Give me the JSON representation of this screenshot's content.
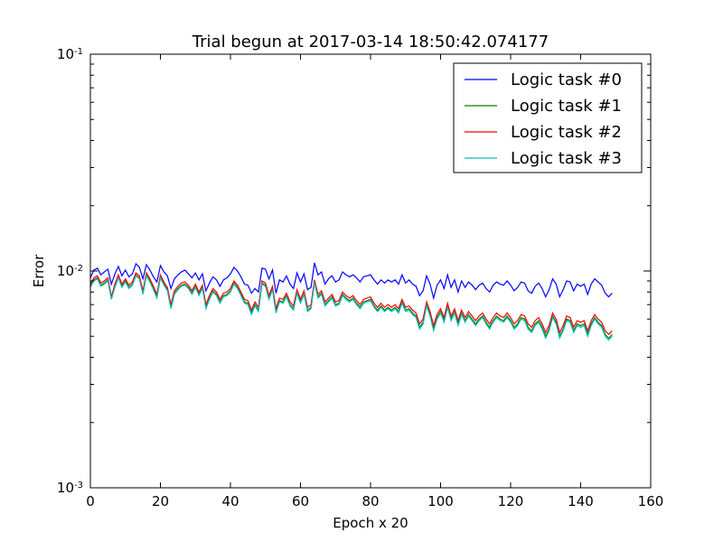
{
  "chart_data": {
    "type": "line",
    "title": "Trial begun at 2017-03-14 18:50:42.074177",
    "xlabel": "Epoch x 20",
    "ylabel": "Error",
    "xlim": [
      0,
      160
    ],
    "ylim": [
      0.001,
      0.1
    ],
    "yscale": "log",
    "xticks": [
      0,
      20,
      40,
      60,
      80,
      100,
      120,
      140,
      160
    ],
    "xtick_labels": [
      "0",
      "20",
      "40",
      "60",
      "80",
      "100",
      "120",
      "140",
      "160"
    ],
    "yticks": [
      0.001,
      0.01,
      0.1
    ],
    "ytick_labels": [
      {
        "base": "10",
        "exp": "-3"
      },
      {
        "base": "10",
        "exp": "-2"
      },
      {
        "base": "10",
        "exp": "-1"
      }
    ],
    "legend_position": "top-right",
    "series": [
      {
        "name": "Logic task #0",
        "color": "#0000ff",
        "values": [
          0.0093,
          0.0101,
          0.0103,
          0.0096,
          0.0099,
          0.0102,
          0.0087,
          0.0097,
          0.0105,
          0.0095,
          0.0101,
          0.0094,
          0.0097,
          0.0108,
          0.0104,
          0.0092,
          0.0107,
          0.0101,
          0.0094,
          0.0089,
          0.0106,
          0.0099,
          0.0095,
          0.0083,
          0.0092,
          0.0096,
          0.0099,
          0.0101,
          0.0097,
          0.0093,
          0.0098,
          0.0091,
          0.0097,
          0.0081,
          0.0088,
          0.0094,
          0.0091,
          0.0085,
          0.0091,
          0.0093,
          0.0097,
          0.0104,
          0.01,
          0.0094,
          0.0087,
          0.0086,
          0.0079,
          0.0083,
          0.008,
          0.0103,
          0.0102,
          0.0092,
          0.0101,
          0.0079,
          0.0091,
          0.0089,
          0.0095,
          0.0087,
          0.0083,
          0.0098,
          0.0089,
          0.0097,
          0.0082,
          0.0084,
          0.0109,
          0.0096,
          0.0099,
          0.0087,
          0.0092,
          0.0095,
          0.0089,
          0.0091,
          0.0099,
          0.0096,
          0.0094,
          0.0096,
          0.0093,
          0.0089,
          0.0094,
          0.0095,
          0.0096,
          0.0091,
          0.0087,
          0.0091,
          0.0088,
          0.0091,
          0.0089,
          0.0091,
          0.0087,
          0.0096,
          0.0088,
          0.0091,
          0.0087,
          0.0085,
          0.0077,
          0.0081,
          0.0095,
          0.0087,
          0.0075,
          0.0086,
          0.0091,
          0.0083,
          0.0096,
          0.0084,
          0.0091,
          0.008,
          0.009,
          0.0084,
          0.0089,
          0.0086,
          0.0082,
          0.0086,
          0.0088,
          0.0083,
          0.008,
          0.0086,
          0.0089,
          0.0087,
          0.0086,
          0.009,
          0.0086,
          0.0081,
          0.0084,
          0.0089,
          0.0088,
          0.0081,
          0.0079,
          0.0085,
          0.0088,
          0.0083,
          0.0076,
          0.0082,
          0.0092,
          0.0087,
          0.0076,
          0.0082,
          0.009,
          0.0089,
          0.0081,
          0.0087,
          0.0085,
          0.0087,
          0.0078,
          0.0087,
          0.0092,
          0.0089,
          0.0086,
          0.0079,
          0.0076,
          0.0079
        ]
      },
      {
        "name": "Logic task #1",
        "color": "#008000",
        "values": [
          0.0085,
          0.0091,
          0.0093,
          0.0086,
          0.0088,
          0.0091,
          0.0075,
          0.0085,
          0.0094,
          0.0085,
          0.009,
          0.0084,
          0.0087,
          0.0096,
          0.0093,
          0.0079,
          0.0096,
          0.009,
          0.0083,
          0.0076,
          0.0094,
          0.0087,
          0.0082,
          0.0068,
          0.0079,
          0.0083,
          0.0086,
          0.0087,
          0.0084,
          0.0079,
          0.0085,
          0.0078,
          0.0084,
          0.0068,
          0.0075,
          0.0081,
          0.0078,
          0.0072,
          0.0077,
          0.0078,
          0.0081,
          0.0088,
          0.0084,
          0.0078,
          0.0072,
          0.0071,
          0.0064,
          0.007,
          0.0066,
          0.0088,
          0.0086,
          0.0075,
          0.0083,
          0.0065,
          0.0073,
          0.0072,
          0.0077,
          0.007,
          0.0067,
          0.008,
          0.0072,
          0.0079,
          0.0066,
          0.0068,
          0.0089,
          0.0076,
          0.0079,
          0.007,
          0.0073,
          0.0076,
          0.007,
          0.0071,
          0.0078,
          0.0075,
          0.0073,
          0.0075,
          0.0071,
          0.0068,
          0.0072,
          0.0073,
          0.0074,
          0.0069,
          0.0066,
          0.0069,
          0.0066,
          0.0068,
          0.0066,
          0.0068,
          0.0065,
          0.0072,
          0.0066,
          0.0067,
          0.0064,
          0.0062,
          0.0055,
          0.0058,
          0.007,
          0.0063,
          0.0054,
          0.0061,
          0.0065,
          0.0059,
          0.0069,
          0.006,
          0.0065,
          0.0057,
          0.0064,
          0.0059,
          0.0063,
          0.006,
          0.0057,
          0.006,
          0.0062,
          0.0058,
          0.0055,
          0.0059,
          0.0062,
          0.006,
          0.0059,
          0.0062,
          0.0059,
          0.0055,
          0.0057,
          0.0061,
          0.006,
          0.0055,
          0.0053,
          0.0057,
          0.0059,
          0.0055,
          0.005,
          0.0054,
          0.0062,
          0.0058,
          0.005,
          0.0054,
          0.006,
          0.0059,
          0.0053,
          0.0057,
          0.0056,
          0.0057,
          0.0051,
          0.0057,
          0.0061,
          0.0058,
          0.0056,
          0.0051,
          0.0049,
          0.0051
        ]
      },
      {
        "name": "Logic task #2",
        "color": "#ff0000",
        "values": [
          0.0087,
          0.0093,
          0.0095,
          0.0088,
          0.009,
          0.0093,
          0.0076,
          0.0087,
          0.0096,
          0.0087,
          0.0092,
          0.0086,
          0.0089,
          0.0098,
          0.0095,
          0.0081,
          0.0098,
          0.0092,
          0.0085,
          0.0078,
          0.0096,
          0.0089,
          0.0084,
          0.007,
          0.0081,
          0.0085,
          0.0088,
          0.0089,
          0.0086,
          0.0081,
          0.0087,
          0.008,
          0.0086,
          0.007,
          0.0077,
          0.0083,
          0.008,
          0.0074,
          0.0079,
          0.008,
          0.0083,
          0.009,
          0.0086,
          0.008,
          0.0074,
          0.0073,
          0.0066,
          0.0072,
          0.0068,
          0.009,
          0.0088,
          0.0077,
          0.0085,
          0.0067,
          0.0075,
          0.0074,
          0.0079,
          0.0072,
          0.0069,
          0.0082,
          0.0074,
          0.0081,
          0.0068,
          0.007,
          0.0091,
          0.0078,
          0.0081,
          0.0072,
          0.0075,
          0.0078,
          0.0072,
          0.0073,
          0.008,
          0.0077,
          0.0075,
          0.0077,
          0.0073,
          0.007,
          0.0074,
          0.0075,
          0.0076,
          0.0071,
          0.0068,
          0.0071,
          0.0068,
          0.007,
          0.0068,
          0.007,
          0.0067,
          0.0074,
          0.0068,
          0.0069,
          0.0066,
          0.0064,
          0.0057,
          0.006,
          0.0072,
          0.0065,
          0.0056,
          0.0063,
          0.0067,
          0.0061,
          0.0071,
          0.0062,
          0.0067,
          0.0059,
          0.0066,
          0.0061,
          0.0065,
          0.0062,
          0.0059,
          0.0062,
          0.0064,
          0.006,
          0.0057,
          0.0061,
          0.0064,
          0.0062,
          0.0061,
          0.0064,
          0.0061,
          0.0057,
          0.0059,
          0.0063,
          0.0062,
          0.0057,
          0.0055,
          0.0059,
          0.0061,
          0.0057,
          0.0052,
          0.0056,
          0.0064,
          0.006,
          0.0052,
          0.0056,
          0.0062,
          0.0061,
          0.0055,
          0.0059,
          0.0058,
          0.0059,
          0.0053,
          0.0059,
          0.0063,
          0.006,
          0.0058,
          0.0053,
          0.0051,
          0.0053
        ]
      },
      {
        "name": "Logic task #3",
        "color": "#00bfbf",
        "values": [
          0.0084,
          0.009,
          0.0092,
          0.0085,
          0.0087,
          0.009,
          0.0074,
          0.0084,
          0.0093,
          0.0084,
          0.0089,
          0.0083,
          0.0086,
          0.0095,
          0.0092,
          0.0078,
          0.0095,
          0.0089,
          0.0082,
          0.0075,
          0.0093,
          0.0086,
          0.0081,
          0.0067,
          0.0078,
          0.0082,
          0.0085,
          0.0086,
          0.0083,
          0.0078,
          0.0084,
          0.0077,
          0.0083,
          0.0067,
          0.0074,
          0.008,
          0.0077,
          0.0071,
          0.0076,
          0.0077,
          0.008,
          0.0087,
          0.0083,
          0.0077,
          0.0071,
          0.007,
          0.0063,
          0.0069,
          0.0065,
          0.0087,
          0.0085,
          0.0074,
          0.0082,
          0.0064,
          0.0072,
          0.0071,
          0.0076,
          0.0069,
          0.0066,
          0.0079,
          0.0071,
          0.0078,
          0.0065,
          0.0067,
          0.0088,
          0.0075,
          0.0078,
          0.0069,
          0.0072,
          0.0075,
          0.0069,
          0.007,
          0.0077,
          0.0074,
          0.0072,
          0.0074,
          0.007,
          0.0067,
          0.0071,
          0.0072,
          0.0073,
          0.0068,
          0.0065,
          0.0068,
          0.0065,
          0.0067,
          0.0065,
          0.0067,
          0.0064,
          0.0071,
          0.0065,
          0.0066,
          0.0063,
          0.0061,
          0.0054,
          0.0057,
          0.0069,
          0.0062,
          0.0053,
          0.006,
          0.0064,
          0.0058,
          0.0068,
          0.0059,
          0.0064,
          0.0056,
          0.0063,
          0.0058,
          0.0062,
          0.0059,
          0.0056,
          0.0059,
          0.0061,
          0.0057,
          0.0054,
          0.0058,
          0.0061,
          0.0059,
          0.0058,
          0.0061,
          0.0058,
          0.0054,
          0.0056,
          0.006,
          0.0059,
          0.0054,
          0.0052,
          0.0056,
          0.0058,
          0.0054,
          0.0049,
          0.0053,
          0.0061,
          0.0057,
          0.0049,
          0.0053,
          0.0059,
          0.0058,
          0.0052,
          0.0056,
          0.0055,
          0.0056,
          0.005,
          0.0056,
          0.006,
          0.0057,
          0.0055,
          0.005,
          0.0048,
          0.005
        ]
      }
    ]
  }
}
